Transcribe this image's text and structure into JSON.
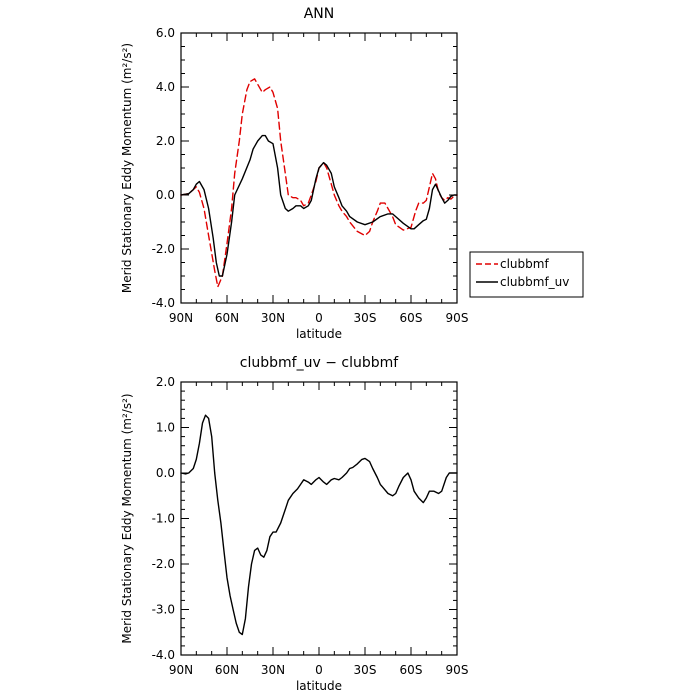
{
  "colors": {
    "clubbmf": "#e00000",
    "clubbmf_uv": "#000000"
  },
  "chart_data": [
    {
      "type": "line",
      "title": "ANN",
      "xlabel": "latitude",
      "ylabel": "Merid Stationary Eddy Momentum (m²/s²)",
      "x_ticks": [
        "90N",
        "60N",
        "30N",
        "0",
        "30S",
        "60S",
        "90S"
      ],
      "y_ticks": [
        "-4.0",
        "-2.0",
        "0.0",
        "2.0",
        "4.0",
        "6.0"
      ],
      "xlim": [
        90,
        -90
      ],
      "ylim": [
        -4.0,
        6.0
      ],
      "legend_placement": "right",
      "series": [
        {
          "name": "clubbmf",
          "style": "dashed",
          "x": [
            90,
            85,
            82,
            80,
            78,
            75,
            72,
            68,
            66,
            63,
            60,
            57,
            55,
            52,
            50,
            47,
            45,
            42,
            40,
            37,
            35,
            32,
            30,
            27,
            25,
            22,
            20,
            17,
            15,
            12,
            10,
            7,
            5,
            2,
            0,
            -3,
            -5,
            -8,
            -10,
            -13,
            -15,
            -18,
            -20,
            -25,
            -30,
            -33,
            -35,
            -38,
            -40,
            -43,
            -45,
            -48,
            -50,
            -55,
            -60,
            -63,
            -65,
            -68,
            -70,
            -72,
            -74,
            -76,
            -78,
            -80,
            -82,
            -84,
            -86,
            -88,
            -90
          ],
          "y": [
            0.0,
            0.05,
            0.2,
            0.3,
            0.1,
            -0.5,
            -1.5,
            -2.8,
            -3.4,
            -3.0,
            -1.8,
            -0.5,
            0.8,
            2.0,
            3.0,
            3.9,
            4.2,
            4.3,
            4.1,
            3.8,
            3.9,
            4.0,
            3.8,
            3.2,
            2.0,
            0.8,
            0.0,
            -0.1,
            -0.1,
            -0.2,
            -0.4,
            -0.3,
            0.0,
            0.5,
            1.0,
            1.2,
            1.0,
            0.4,
            0.0,
            -0.4,
            -0.6,
            -0.8,
            -1.0,
            -1.35,
            -1.5,
            -1.35,
            -1.0,
            -0.6,
            -0.3,
            -0.3,
            -0.5,
            -0.8,
            -1.1,
            -1.3,
            -1.2,
            -0.6,
            -0.3,
            -0.3,
            -0.2,
            0.3,
            0.8,
            0.6,
            0.1,
            -0.1,
            -0.2,
            -0.1,
            -0.15,
            -0.05,
            0.0
          ]
        },
        {
          "name": "clubbmf_uv",
          "style": "solid",
          "x": [
            90,
            85,
            82,
            80,
            78,
            75,
            72,
            69,
            67,
            65,
            63,
            60,
            57,
            55,
            50,
            45,
            43,
            40,
            37,
            35,
            33,
            30,
            27,
            25,
            22,
            20,
            17,
            15,
            12,
            10,
            7,
            5,
            2,
            0,
            -3,
            -5,
            -8,
            -10,
            -13,
            -15,
            -18,
            -20,
            -25,
            -30,
            -35,
            -40,
            -45,
            -48,
            -50,
            -55,
            -60,
            -62,
            -65,
            -68,
            -70,
            -72,
            -74,
            -76,
            -78,
            -80,
            -82,
            -84,
            -86,
            -88,
            -90
          ],
          "y": [
            0.0,
            0.05,
            0.2,
            0.4,
            0.5,
            0.2,
            -0.5,
            -1.6,
            -2.5,
            -3.0,
            -3.0,
            -2.2,
            -1.0,
            0.0,
            0.6,
            1.3,
            1.7,
            2.0,
            2.2,
            2.2,
            2.0,
            1.9,
            1.0,
            0.0,
            -0.5,
            -0.6,
            -0.5,
            -0.4,
            -0.4,
            -0.5,
            -0.4,
            -0.2,
            0.6,
            1.0,
            1.2,
            1.1,
            0.8,
            0.3,
            -0.1,
            -0.4,
            -0.6,
            -0.8,
            -1.0,
            -1.1,
            -1.0,
            -0.8,
            -0.7,
            -0.7,
            -0.8,
            -1.05,
            -1.25,
            -1.25,
            -1.1,
            -0.95,
            -0.9,
            -0.5,
            0.2,
            0.4,
            0.15,
            -0.1,
            -0.3,
            -0.2,
            -0.05,
            0.0,
            0.0
          ]
        }
      ]
    },
    {
      "type": "line",
      "title": "clubbmf_uv − clubbmf",
      "xlabel": "latitude",
      "ylabel": "Merid Stationary Eddy Momentum (m²/s²)",
      "x_ticks": [
        "90N",
        "60N",
        "30N",
        "0",
        "30S",
        "60S",
        "90S"
      ],
      "y_ticks": [
        "-4.0",
        "-3.0",
        "-2.0",
        "-1.0",
        "0.0",
        "1.0",
        "2.0"
      ],
      "xlim": [
        90,
        -90
      ],
      "ylim": [
        -4.0,
        2.0
      ],
      "series": [
        {
          "style": "solid",
          "x": [
            90,
            87,
            85,
            82,
            80,
            78,
            76,
            74,
            72,
            70,
            68,
            66,
            64,
            62,
            60,
            58,
            56,
            54,
            52,
            50,
            48,
            46,
            44,
            42,
            40,
            38,
            36,
            34,
            32,
            30,
            28,
            25,
            22,
            20,
            17,
            14,
            12,
            10,
            7,
            5,
            2,
            0,
            -3,
            -5,
            -8,
            -10,
            -13,
            -15,
            -18,
            -20,
            -22,
            -25,
            -28,
            -30,
            -33,
            -35,
            -38,
            -40,
            -45,
            -48,
            -50,
            -52,
            -55,
            -58,
            -60,
            -62,
            -65,
            -68,
            -70,
            -72,
            -75,
            -78,
            -80,
            -83,
            -85,
            -88,
            -90
          ],
          "y": [
            0.0,
            -0.02,
            0.0,
            0.1,
            0.3,
            0.65,
            1.1,
            1.27,
            1.2,
            0.8,
            0.0,
            -0.6,
            -1.1,
            -1.7,
            -2.3,
            -2.7,
            -3.0,
            -3.3,
            -3.5,
            -3.55,
            -3.2,
            -2.5,
            -2.0,
            -1.7,
            -1.65,
            -1.8,
            -1.85,
            -1.7,
            -1.4,
            -1.3,
            -1.3,
            -1.1,
            -0.8,
            -0.6,
            -0.45,
            -0.35,
            -0.25,
            -0.15,
            -0.2,
            -0.25,
            -0.15,
            -0.1,
            -0.2,
            -0.25,
            -0.15,
            -0.12,
            -0.15,
            -0.1,
            0.0,
            0.1,
            0.12,
            0.2,
            0.3,
            0.32,
            0.25,
            0.1,
            -0.1,
            -0.25,
            -0.45,
            -0.5,
            -0.45,
            -0.3,
            -0.1,
            0.0,
            -0.15,
            -0.4,
            -0.55,
            -0.65,
            -0.55,
            -0.4,
            -0.4,
            -0.45,
            -0.4,
            -0.1,
            0.0,
            0.0,
            0.0
          ]
        }
      ]
    }
  ]
}
